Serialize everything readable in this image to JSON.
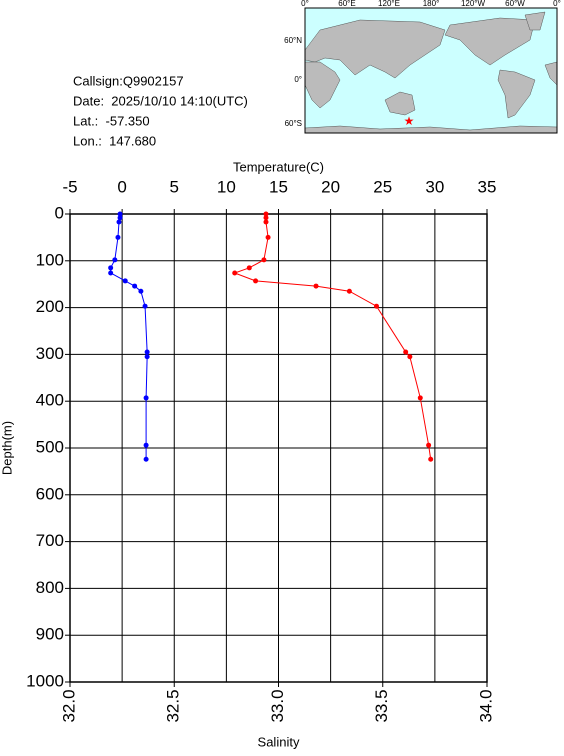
{
  "chart_data": {
    "type": "line",
    "info": {
      "callsign": "Callsign:Q9902157",
      "date": "Date:  2025/10/10 14:10(UTC)",
      "lat": "Lat.:  -57.350",
      "lon": "Lon.:  147.680"
    },
    "map": {
      "lon_labels": [
        "0°",
        "60°E",
        "120°E",
        "180°",
        "120°W",
        "60°W",
        "0°"
      ],
      "lat_labels": [
        "60°N",
        "0°",
        "60°S"
      ]
    },
    "xlabel": "Temperature(C)",
    "x2label": "Salinity",
    "ylabel": "Depth(m)",
    "xlim": [
      -5,
      35
    ],
    "xticks": [
      -5,
      0,
      5,
      10,
      15,
      20,
      25,
      30,
      35
    ],
    "x2lim": [
      32,
      34
    ],
    "x2ticks": [
      {
        "value": 32,
        "label": "32.0"
      },
      {
        "value": 32.5,
        "label": "32.5"
      },
      {
        "value": 33,
        "label": "33.0"
      },
      {
        "value": 33.5,
        "label": "33.5"
      },
      {
        "value": 34,
        "label": "34.0"
      }
    ],
    "ylim": [
      0,
      1000
    ],
    "yticks": [
      0,
      100,
      200,
      300,
      400,
      500,
      600,
      700,
      800,
      900,
      1000
    ],
    "grid": true,
    "depth": [
      0,
      8,
      17,
      50,
      98,
      115,
      126,
      143,
      154,
      165,
      197,
      295,
      305,
      393,
      494,
      524
    ],
    "series": [
      {
        "color": "#0000ff",
        "axis": "x",
        "values": [
          -0.2,
          -0.2,
          -0.3,
          -0.4,
          -0.7,
          -1.1,
          -1.1,
          0.3,
          1.2,
          1.8,
          2.2,
          2.4,
          2.4,
          2.3,
          2.3,
          2.3
        ]
      },
      {
        "color": "#ff0000",
        "axis": "x2",
        "values": [
          32.94,
          32.94,
          32.94,
          32.95,
          32.93,
          32.86,
          32.79,
          32.89,
          33.18,
          33.34,
          33.47,
          33.61,
          33.63,
          33.68,
          33.72,
          33.73
        ]
      }
    ]
  }
}
